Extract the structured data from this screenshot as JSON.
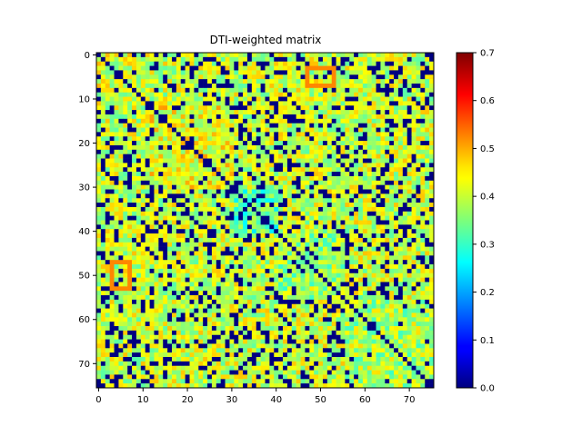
{
  "chart_data": {
    "type": "heatmap",
    "title": "DTI-weighted matrix",
    "xlabel": "",
    "ylabel": "",
    "size": 76,
    "x_ticks": [
      0,
      10,
      20,
      30,
      40,
      50,
      60,
      70
    ],
    "y_ticks": [
      0,
      10,
      20,
      30,
      40,
      50,
      60,
      70
    ],
    "colormap": "jet",
    "color_range": [
      0.0,
      0.7
    ],
    "colorbar_ticks": [
      "0.0",
      "0.1",
      "0.2",
      "0.3",
      "0.4",
      "0.5",
      "0.6",
      "0.7"
    ],
    "grid": false,
    "diagonal_value": 0.0,
    "blocks": [
      {
        "from": 0,
        "to": 12,
        "base": 0.41
      },
      {
        "from": 12,
        "to": 31,
        "base": 0.43
      },
      {
        "from": 31,
        "to": 41,
        "base": 0.33
      },
      {
        "from": 41,
        "to": 56,
        "base": 0.37
      },
      {
        "from": 56,
        "to": 76,
        "base": 0.38
      }
    ],
    "highlight_squares": [
      {
        "row_start": 3,
        "row_end": 7,
        "col_start": 47,
        "col_end": 53,
        "value": 0.52
      },
      {
        "row_start": 47,
        "row_end": 53,
        "col_start": 3,
        "col_end": 7,
        "value": 0.52
      }
    ],
    "zero_fraction": 0.22,
    "random_seed": 7
  }
}
